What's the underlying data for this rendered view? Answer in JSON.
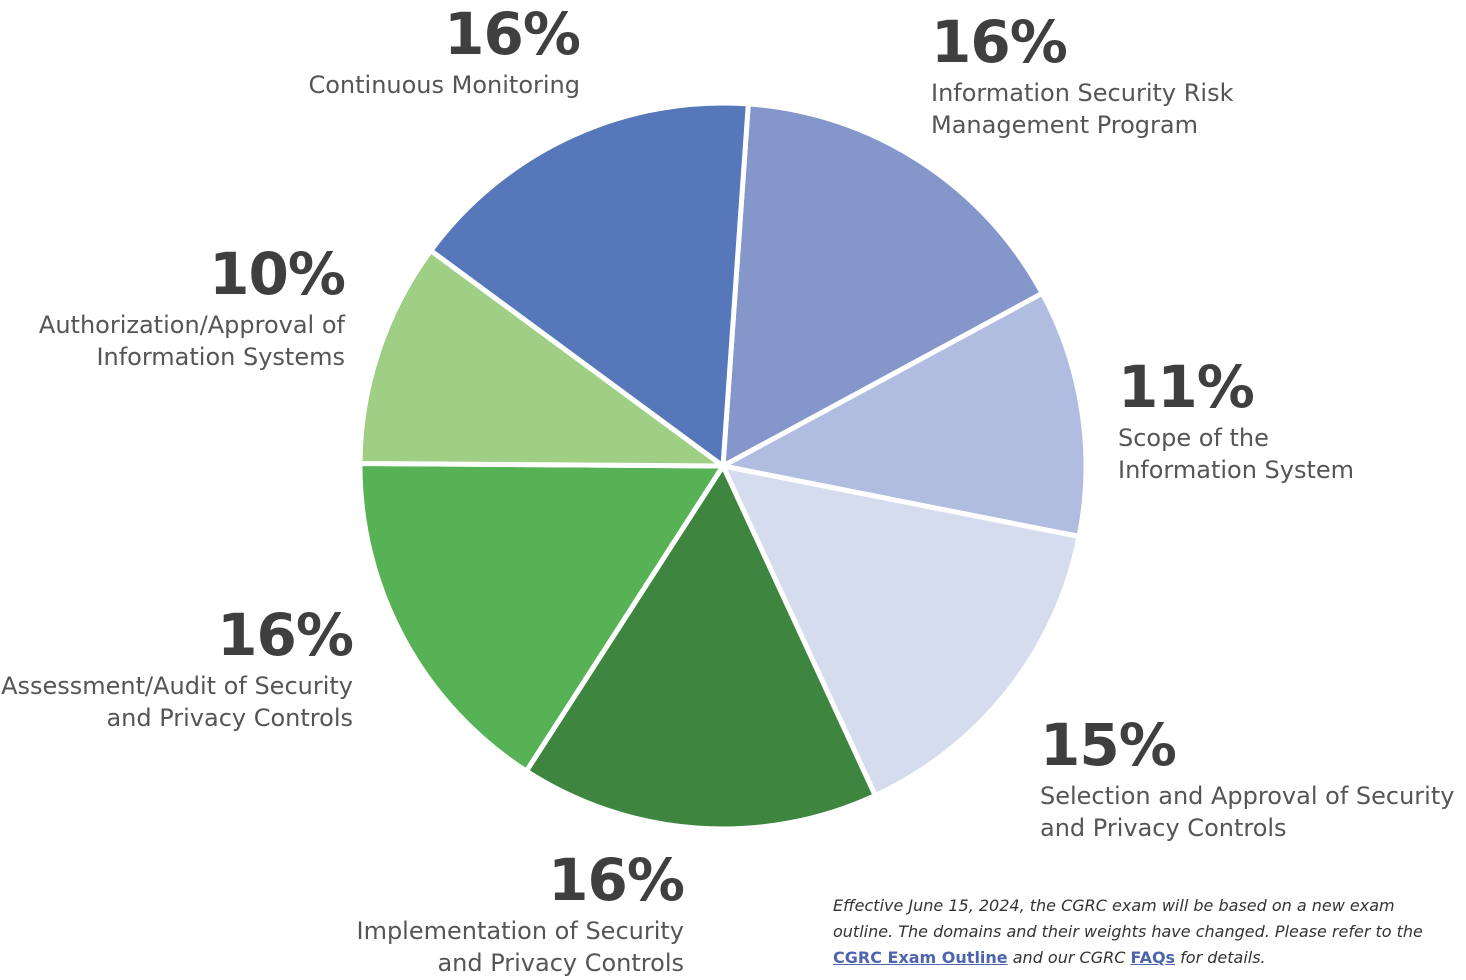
{
  "chart_data": {
    "type": "pie",
    "slices": [
      {
        "label": "Information Security Risk\nManagement Program",
        "value": 16,
        "display": "16%",
        "color": "#8496ca"
      },
      {
        "label": "Scope of the\nInformation System",
        "value": 11,
        "display": "11%",
        "color": "#b1bde0"
      },
      {
        "label": "Selection and Approval of Security\nand Privacy Controls",
        "value": 15,
        "display": "15%",
        "color": "#d5dcee"
      },
      {
        "label": "Implementation of Security\nand Privacy Controls",
        "value": 16,
        "display": "16%",
        "color": "#3e853f"
      },
      {
        "label": "Assessment/Audit of Security\nand Privacy Controls",
        "value": 16,
        "display": "16%",
        "color": "#57b155"
      },
      {
        "label": "Authorization/Approval of\nInformation Systems",
        "value": 10,
        "display": "10%",
        "color": "#9ecf85"
      },
      {
        "label": "Continuous Monitoring",
        "value": 16,
        "display": "16%",
        "color": "#5677b9"
      }
    ]
  },
  "footnote": {
    "text_1": "Effective June 15, 2024, the CGRC exam will be based on a new exam outline. The domains and their weights have changed. Please refer to the ",
    "link_1": "CGRC Exam Outline",
    "text_2": " and our CGRC ",
    "link_2": "FAQs",
    "text_3": " for details."
  }
}
